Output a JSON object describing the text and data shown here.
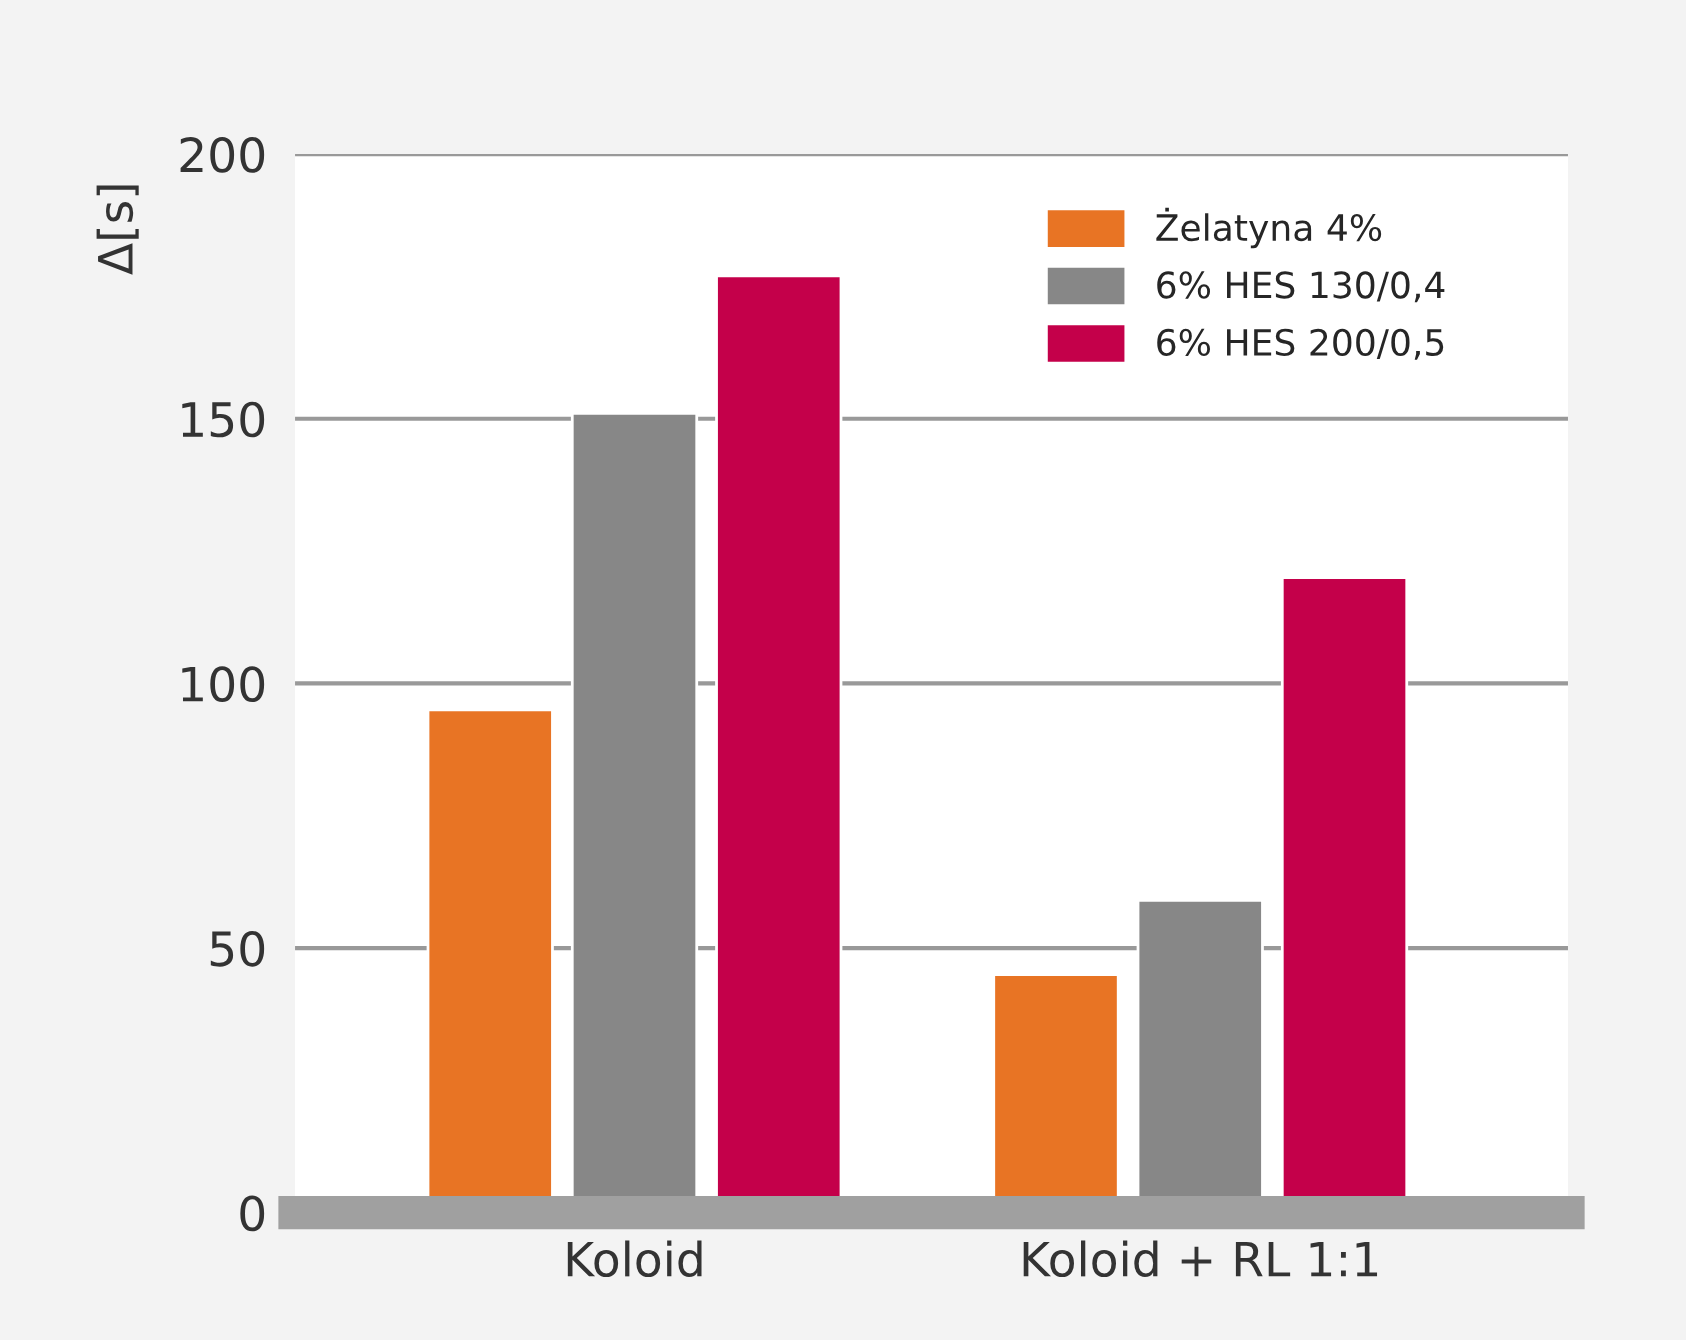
{
  "chart_data": {
    "type": "bar",
    "ylabel": "Δ[s]",
    "categories": [
      "Koloid",
      "Koloid + RL 1:1"
    ],
    "series": [
      {
        "name": "Żelatyna 4%",
        "color": "#e87424",
        "values": [
          95,
          45
        ]
      },
      {
        "name": "6% HES 130/0,4",
        "color": "#878787",
        "values": [
          151,
          59
        ]
      },
      {
        "name": "6% HES 200/0,5",
        "color": "#c4004a",
        "values": [
          177,
          120
        ]
      }
    ],
    "ylim": [
      0,
      200
    ],
    "yticks": [
      0,
      50,
      100,
      150,
      200
    ],
    "grid": "y",
    "legend": "top right"
  }
}
